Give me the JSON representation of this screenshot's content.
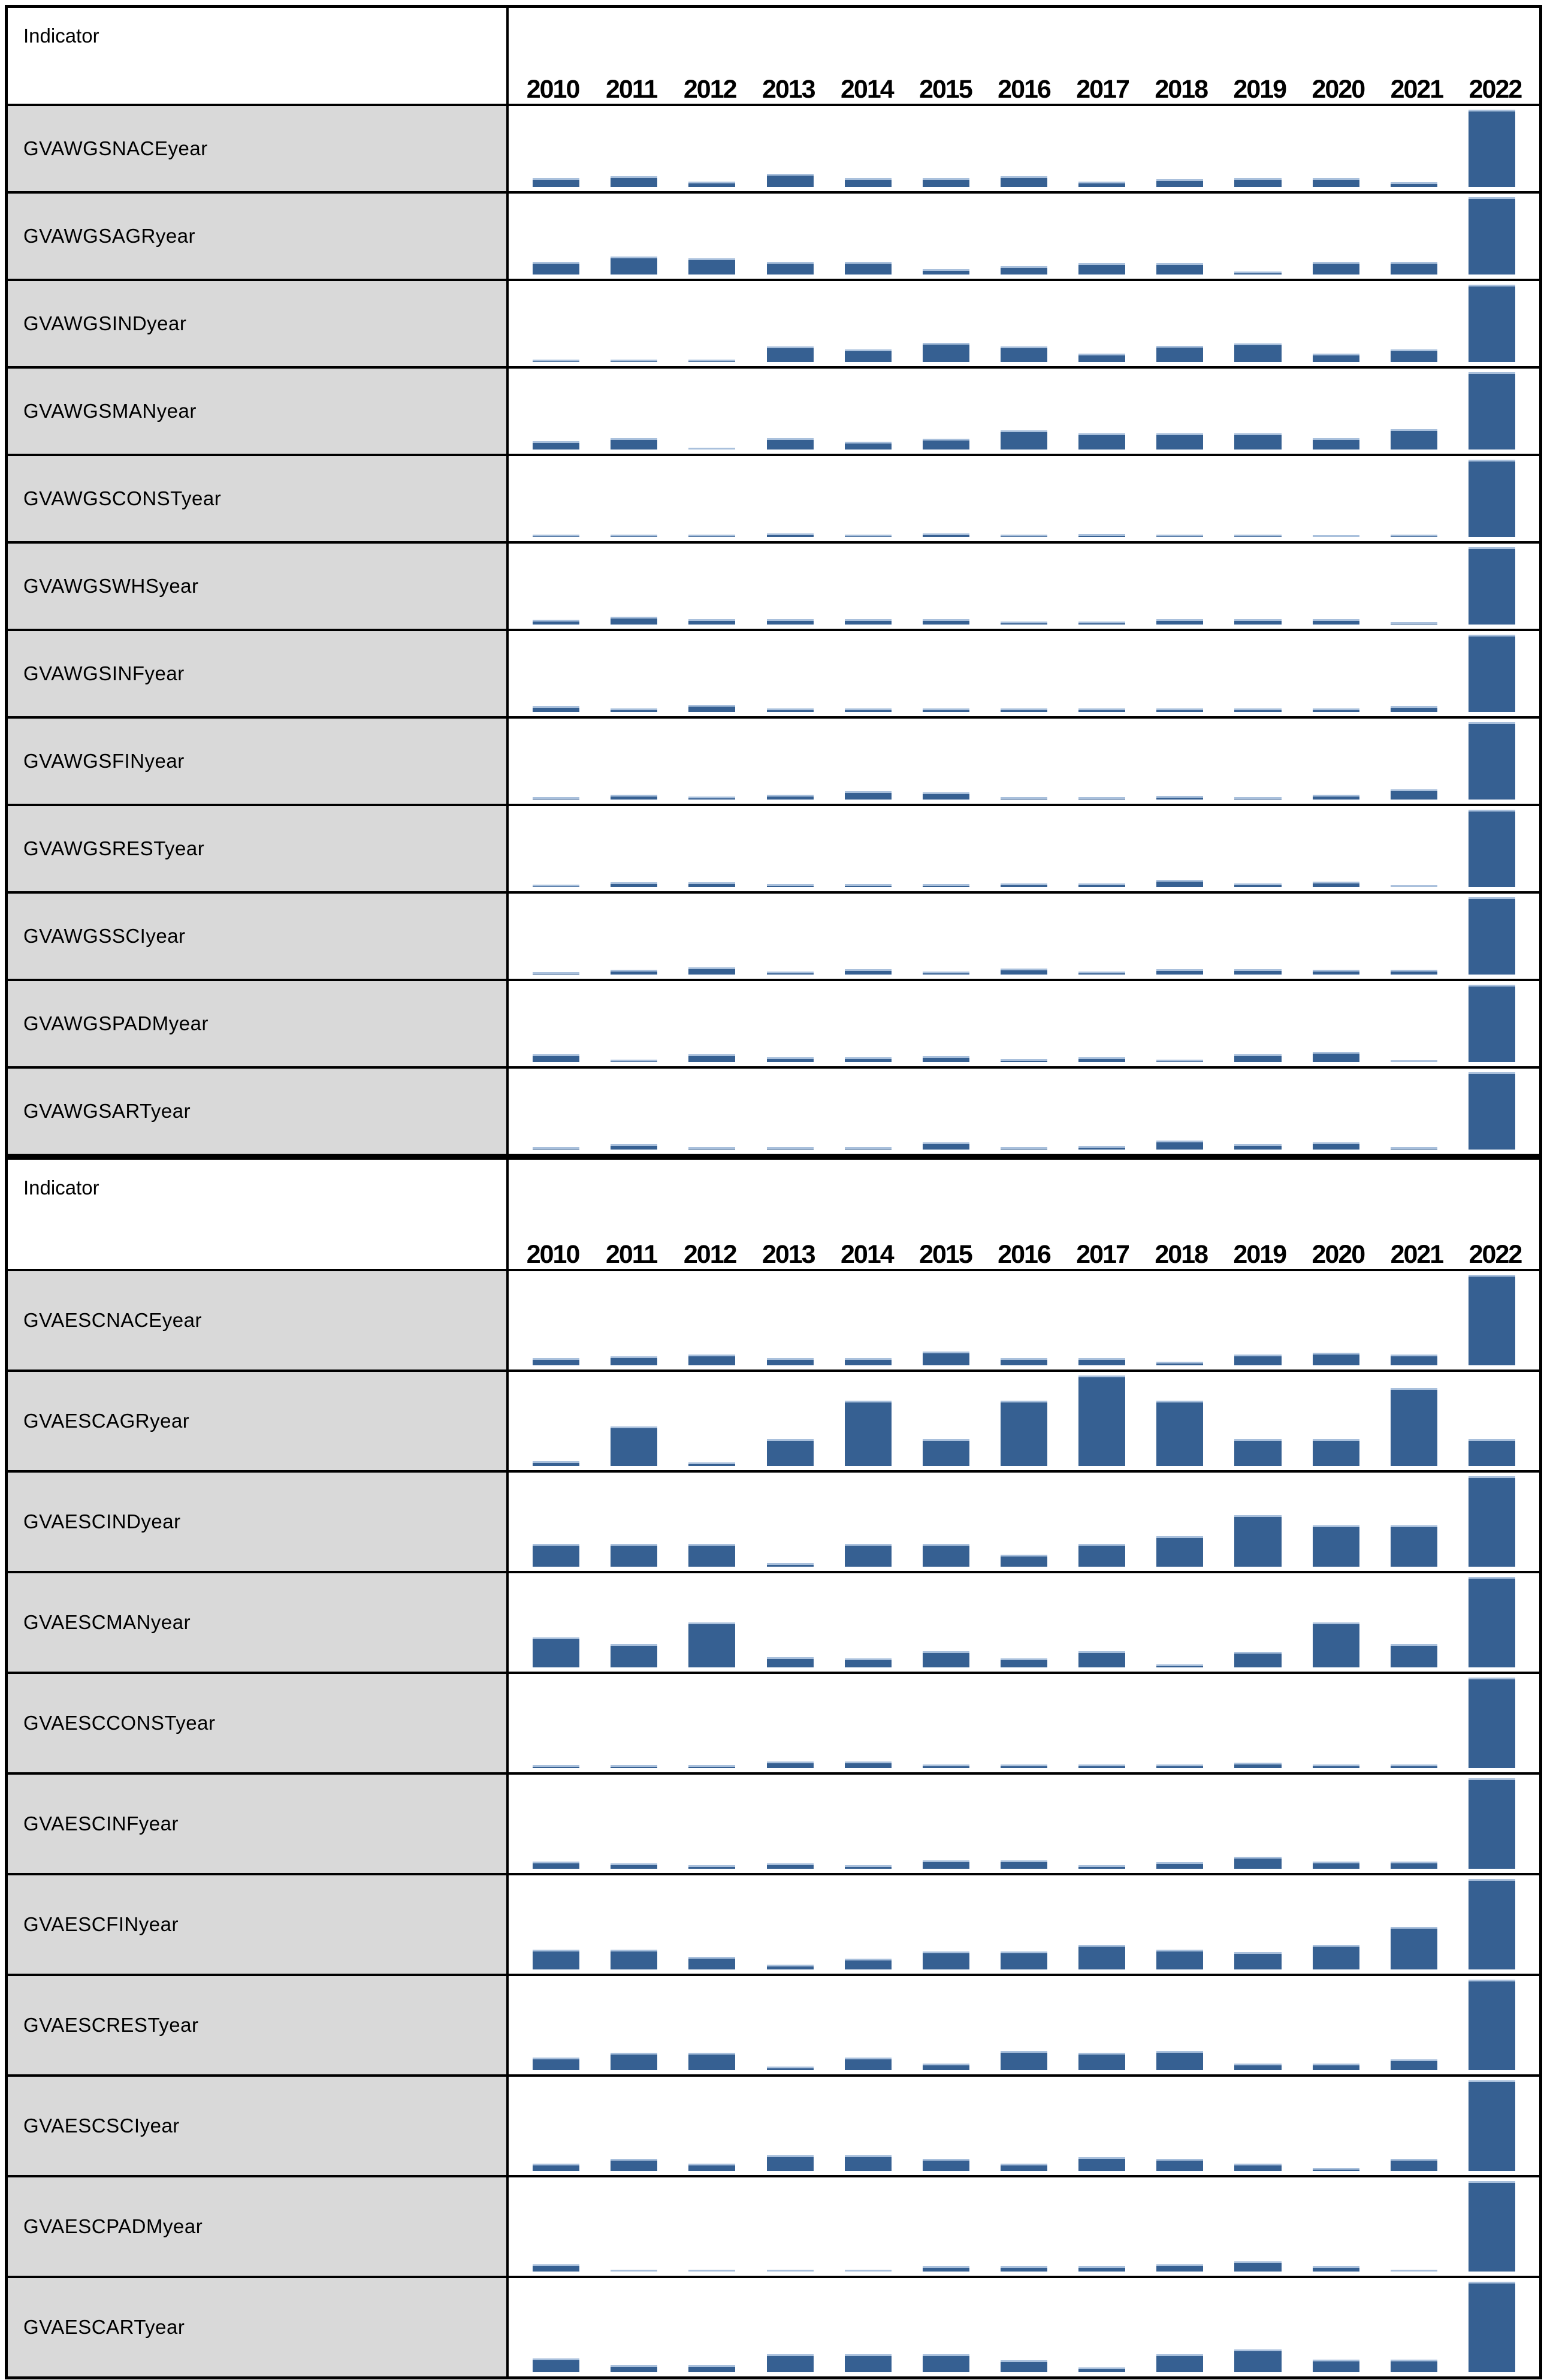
{
  "header": {
    "indicator_label": "Indicator",
    "years": [
      "2010",
      "2011",
      "2012",
      "2013",
      "2014",
      "2015",
      "2016",
      "2017",
      "2018",
      "2019",
      "2020",
      "2021",
      "2022"
    ]
  },
  "colors": {
    "bar": "#366092",
    "bar_top_edge": "#A9C0DC",
    "row_label_background": "#D9D9D9",
    "border": "#000000",
    "background": "#ffffff"
  },
  "chart_data": [
    {
      "type": "bar",
      "title": "",
      "xlabel": "",
      "ylabel": "",
      "value_unit": "percent_of_row_height_estimated_no_axis_shown",
      "ylim": [
        0,
        100
      ],
      "grid": false,
      "legend_position": "none",
      "categories": [
        "2010",
        "2011",
        "2012",
        "2013",
        "2014",
        "2015",
        "2016",
        "2017",
        "2018",
        "2019",
        "2020",
        "2021",
        "2022"
      ],
      "series": [
        {
          "name": "GVAWGSNACEyear",
          "values": [
            12,
            14,
            7,
            17,
            12,
            12,
            14,
            7,
            10,
            12,
            12,
            6,
            100
          ]
        },
        {
          "name": "GVAWGSAGRyear",
          "values": [
            16,
            23,
            21,
            16,
            16,
            7,
            11,
            15,
            15,
            4,
            16,
            16,
            100
          ]
        },
        {
          "name": "GVAWGSINDyear",
          "values": [
            3,
            3,
            3,
            20,
            16,
            25,
            20,
            11,
            21,
            24,
            11,
            16,
            100
          ]
        },
        {
          "name": "GVAWGSMANyear",
          "values": [
            11,
            15,
            2,
            15,
            10,
            14,
            25,
            21,
            21,
            21,
            15,
            26,
            100
          ]
        },
        {
          "name": "GVAWGSCONSTyear",
          "values": [
            3,
            3,
            3,
            5,
            3,
            5,
            3,
            4,
            3,
            3,
            2,
            3,
            100
          ]
        },
        {
          "name": "GVAWGSWHSyear",
          "values": [
            6,
            10,
            7,
            7,
            7,
            7,
            4,
            4,
            7,
            7,
            7,
            3,
            100
          ]
        },
        {
          "name": "GVAWGSINFyear",
          "values": [
            8,
            5,
            9,
            5,
            5,
            5,
            5,
            5,
            5,
            5,
            5,
            8,
            100
          ]
        },
        {
          "name": "GVAWGSFINyear",
          "values": [
            3,
            6,
            4,
            6,
            11,
            9,
            3,
            3,
            5,
            3,
            6,
            13,
            100
          ]
        },
        {
          "name": "GVAWGSRESTyear",
          "values": [
            3,
            6,
            6,
            4,
            4,
            4,
            5,
            5,
            9,
            5,
            7,
            2,
            100
          ]
        },
        {
          "name": "GVAWGSSCIyear",
          "values": [
            3,
            6,
            9,
            4,
            7,
            4,
            8,
            4,
            7,
            7,
            6,
            6,
            100
          ]
        },
        {
          "name": "GVAWGSPADMyear",
          "values": [
            10,
            3,
            10,
            6,
            6,
            8,
            4,
            6,
            3,
            10,
            13,
            2,
            100
          ]
        },
        {
          "name": "GVAWGSARTyear",
          "values": [
            3,
            7,
            3,
            3,
            3,
            9,
            3,
            5,
            12,
            7,
            9,
            3,
            100
          ]
        }
      ]
    },
    {
      "type": "bar",
      "title": "",
      "xlabel": "",
      "ylabel": "",
      "value_unit": "percent_of_row_height_estimated_no_axis_shown",
      "ylim": [
        0,
        100
      ],
      "grid": false,
      "legend_position": "none",
      "categories": [
        "2010",
        "2011",
        "2012",
        "2013",
        "2014",
        "2015",
        "2016",
        "2017",
        "2018",
        "2019",
        "2020",
        "2021",
        "2022"
      ],
      "series": [
        {
          "name": "GVAESCNACEyear",
          "values": [
            8,
            10,
            12,
            8,
            8,
            15,
            8,
            8,
            4,
            12,
            14,
            12,
            100
          ]
        },
        {
          "name": "GVAESCAGRyear",
          "values": [
            5,
            44,
            4,
            30,
            72,
            30,
            72,
            100,
            72,
            30,
            30,
            86,
            30
          ]
        },
        {
          "name": "GVAESCINDyear",
          "values": [
            25,
            25,
            25,
            4,
            25,
            25,
            13,
            25,
            34,
            57,
            46,
            46,
            100
          ]
        },
        {
          "name": "GVAESCMANyear",
          "values": [
            33,
            26,
            50,
            11,
            10,
            18,
            10,
            18,
            3,
            17,
            50,
            26,
            100
          ]
        },
        {
          "name": "GVAESCCONSTyear",
          "values": [
            3,
            3,
            3,
            7,
            7,
            4,
            4,
            4,
            4,
            6,
            4,
            4,
            100
          ]
        },
        {
          "name": "GVAESCINFyear",
          "values": [
            8,
            6,
            4,
            6,
            4,
            9,
            9,
            4,
            7,
            13,
            8,
            8,
            100
          ]
        },
        {
          "name": "GVAESCFINyear",
          "values": [
            22,
            22,
            14,
            5,
            12,
            20,
            20,
            27,
            22,
            19,
            27,
            47,
            100
          ]
        },
        {
          "name": "GVAESCRESTyear",
          "values": [
            14,
            19,
            19,
            4,
            14,
            7,
            21,
            19,
            21,
            7,
            7,
            12,
            100
          ]
        },
        {
          "name": "GVAESCSCIyear",
          "values": [
            8,
            13,
            8,
            17,
            17,
            13,
            8,
            15,
            13,
            8,
            3,
            13,
            100
          ]
        },
        {
          "name": "GVAESCPADMyear",
          "values": [
            8,
            2,
            2,
            2,
            2,
            6,
            6,
            6,
            8,
            11,
            6,
            2,
            100
          ]
        },
        {
          "name": "GVAESCARTyear",
          "values": [
            15,
            8,
            8,
            20,
            20,
            20,
            13,
            5,
            20,
            25,
            14,
            14,
            100
          ]
        }
      ]
    }
  ]
}
